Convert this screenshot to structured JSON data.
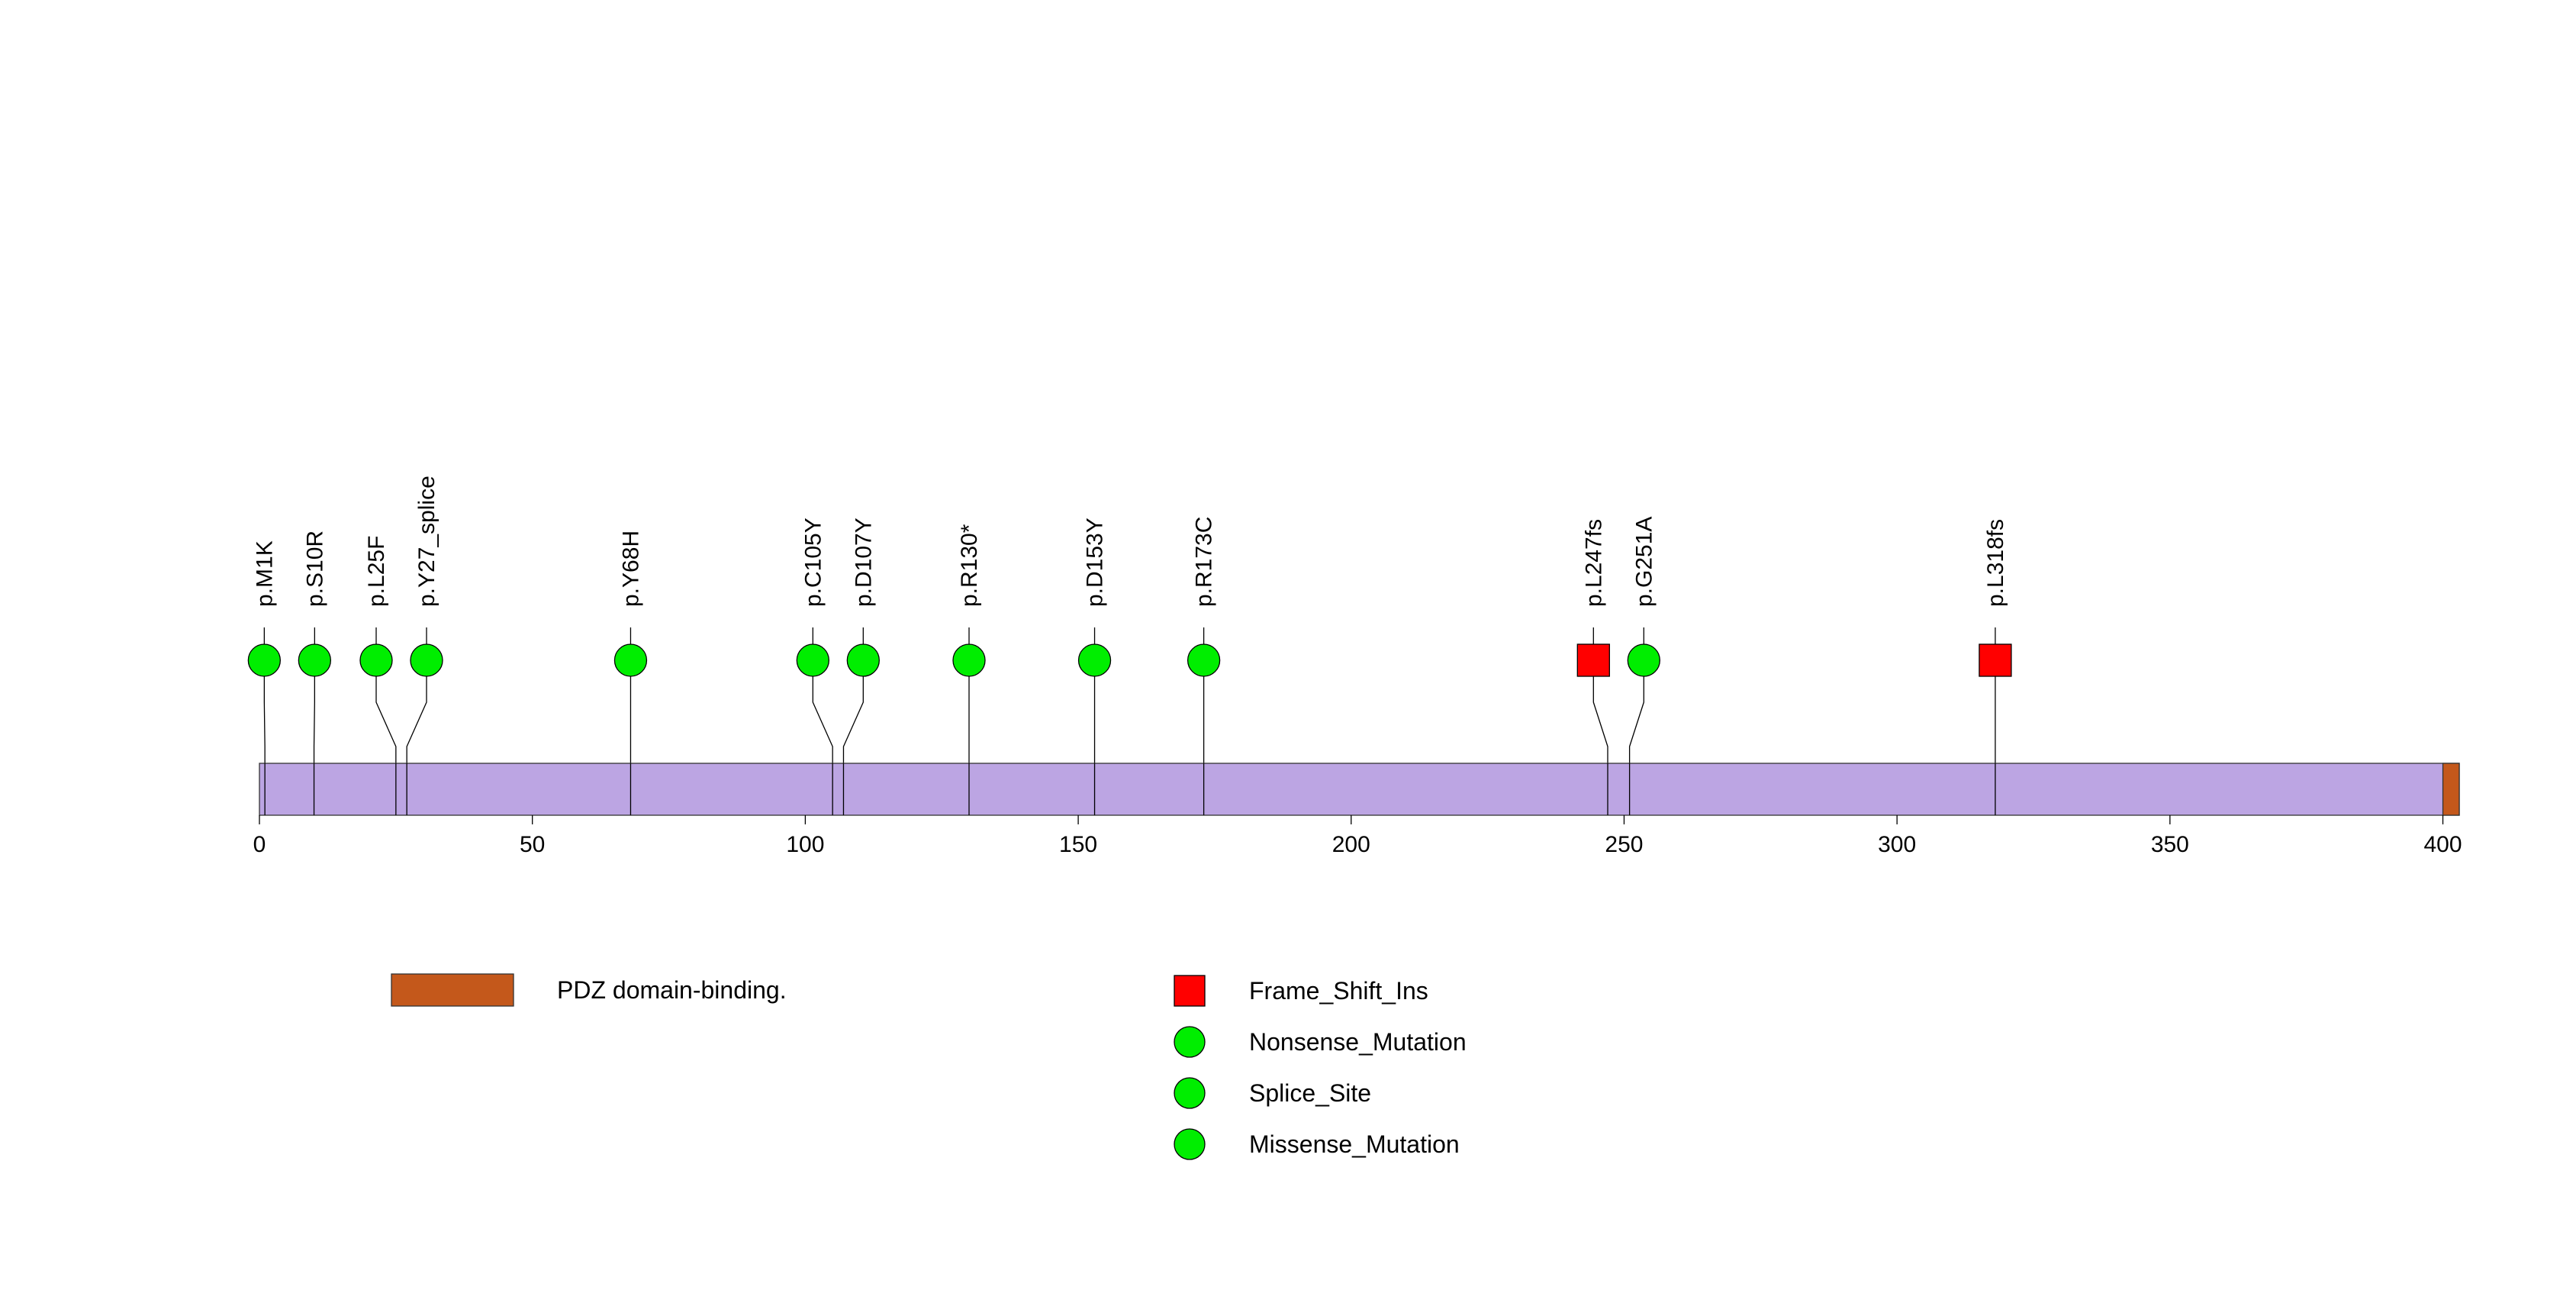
{
  "chart_data": {
    "type": "lollipop",
    "protein_length": 403,
    "xlim": [
      0,
      403
    ],
    "x_ticks": [
      0,
      50,
      100,
      150,
      200,
      250,
      300,
      350,
      400
    ],
    "colors": {
      "protein": "#bca5e3",
      "domain": "#c4581b",
      "frame_shift_ins": "#ff0000",
      "circle_mutation": "#00ee00",
      "stroke": "#000000"
    },
    "domains": [
      {
        "name": "PDZ domain-binding.",
        "start": 400,
        "end": 403
      }
    ],
    "mutations": [
      {
        "label": "p.M1K",
        "position": 1,
        "type": "Nonsense_Mutation"
      },
      {
        "label": "p.S10R",
        "position": 10,
        "type": "Missense_Mutation"
      },
      {
        "label": "p.L25F",
        "position": 25,
        "type": "Missense_Mutation"
      },
      {
        "label": "p.Y27_splice",
        "position": 27,
        "type": "Splice_Site"
      },
      {
        "label": "p.Y68H",
        "position": 68,
        "type": "Missense_Mutation"
      },
      {
        "label": "p.C105Y",
        "position": 105,
        "type": "Missense_Mutation"
      },
      {
        "label": "p.D107Y",
        "position": 107,
        "type": "Missense_Mutation"
      },
      {
        "label": "p.R130*",
        "position": 130,
        "type": "Nonsense_Mutation"
      },
      {
        "label": "p.D153Y",
        "position": 153,
        "type": "Missense_Mutation"
      },
      {
        "label": "p.R173C",
        "position": 173,
        "type": "Missense_Mutation"
      },
      {
        "label": "p.L247fs",
        "position": 247,
        "type": "Frame_Shift_Ins"
      },
      {
        "label": "p.G251A",
        "position": 251,
        "type": "Missense_Mutation"
      },
      {
        "label": "p.L318fs",
        "position": 318,
        "type": "Frame_Shift_Ins"
      }
    ],
    "legend_domains": [
      {
        "label": "PDZ domain-binding.",
        "color": "#c4581b"
      }
    ],
    "legend_mutations": [
      {
        "label": "Frame_Shift_Ins",
        "shape": "square",
        "color": "#ff0000"
      },
      {
        "label": "Nonsense_Mutation",
        "shape": "circle",
        "color": "#00ee00"
      },
      {
        "label": "Splice_Site",
        "shape": "circle",
        "color": "#00ee00"
      },
      {
        "label": "Missense_Mutation",
        "shape": "circle",
        "color": "#00ee00"
      }
    ]
  }
}
